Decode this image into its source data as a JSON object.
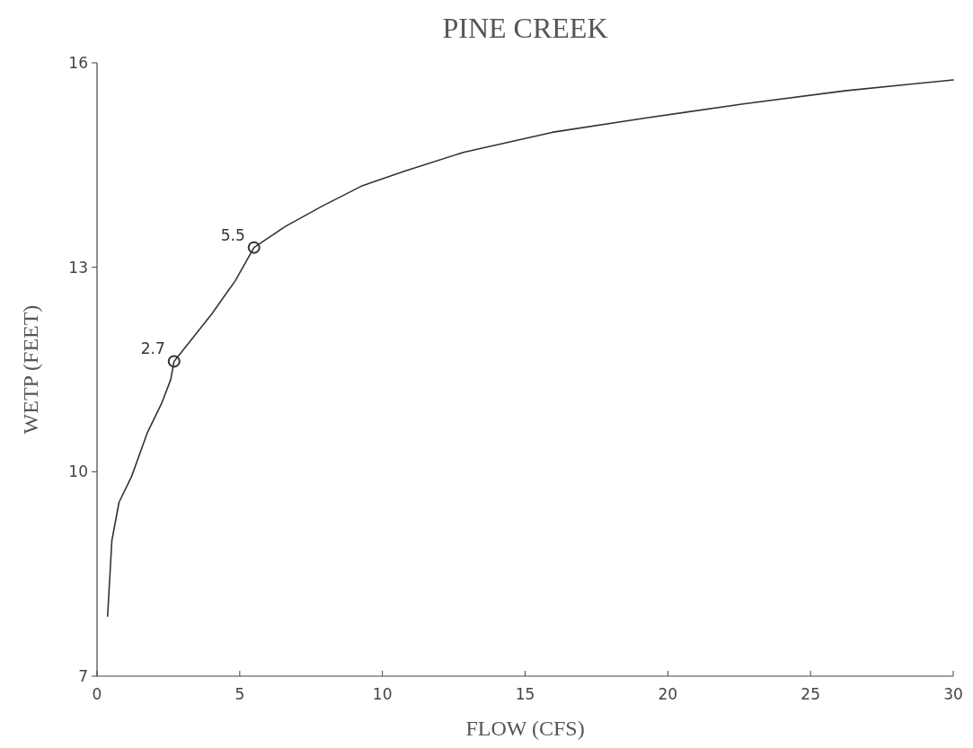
{
  "chart_data": {
    "type": "line",
    "title": "PINE CREEK",
    "xlabel": "FLOW (CFS)",
    "ylabel": "WETP (FEET)",
    "xlim": [
      0,
      30
    ],
    "ylim": [
      7,
      16
    ],
    "xticks": [
      0,
      5,
      10,
      15,
      20,
      25,
      30
    ],
    "yticks": [
      7,
      10,
      13,
      16
    ],
    "grid": false,
    "series": [
      {
        "color": "#333333",
        "marker": "none",
        "line_style": "solid",
        "x": [
          0.37,
          0.52,
          0.77,
          1.21,
          1.77,
          2.26,
          2.58,
          2.7,
          4.03,
          4.84,
          5.5,
          6.6,
          7.9,
          9.26,
          10.76,
          12.86,
          15.94,
          19.2,
          22.7,
          26.2,
          30
        ],
        "values": [
          7.88,
          8.99,
          9.55,
          9.93,
          10.58,
          11.0,
          11.35,
          11.62,
          12.32,
          12.8,
          13.29,
          13.6,
          13.9,
          14.19,
          14.41,
          14.69,
          14.98,
          15.19,
          15.4,
          15.59,
          15.75
        ]
      },
      {
        "type": "scatter",
        "color": "#333333",
        "marker": "circle",
        "x": [
          2.7,
          5.5
        ],
        "values": [
          11.62,
          13.29
        ]
      }
    ],
    "annotations": [
      {
        "text": "2.7",
        "x": 2.7,
        "y": 11.62
      },
      {
        "text": "5.5",
        "x": 5.5,
        "y": 13.29
      }
    ]
  }
}
